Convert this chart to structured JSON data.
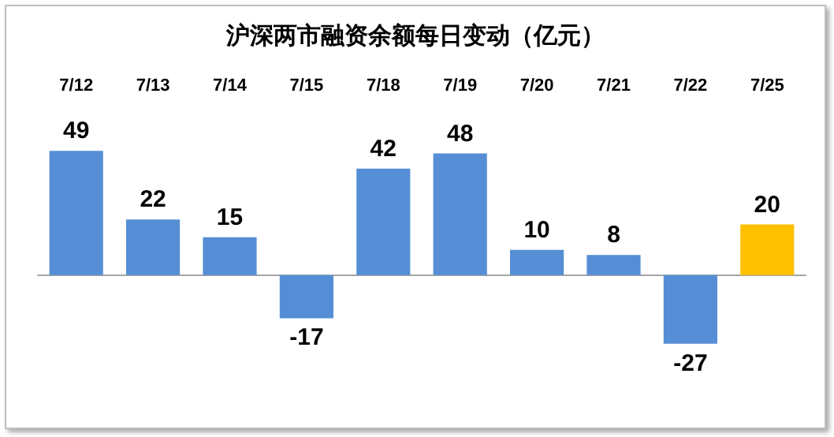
{
  "chart_data": {
    "type": "bar",
    "title": "沪深两市融资余额每日变动（亿元）",
    "categories": [
      "7/12",
      "7/13",
      "7/14",
      "7/15",
      "7/18",
      "7/19",
      "7/20",
      "7/21",
      "7/22",
      "7/25"
    ],
    "values": [
      49,
      22,
      15,
      -17,
      42,
      48,
      10,
      8,
      -27,
      20
    ],
    "colors": [
      "#558ed5",
      "#558ed5",
      "#558ed5",
      "#558ed5",
      "#558ed5",
      "#558ed5",
      "#558ed5",
      "#558ed5",
      "#558ed5",
      "#ffc000"
    ],
    "data_labels": true
  }
}
